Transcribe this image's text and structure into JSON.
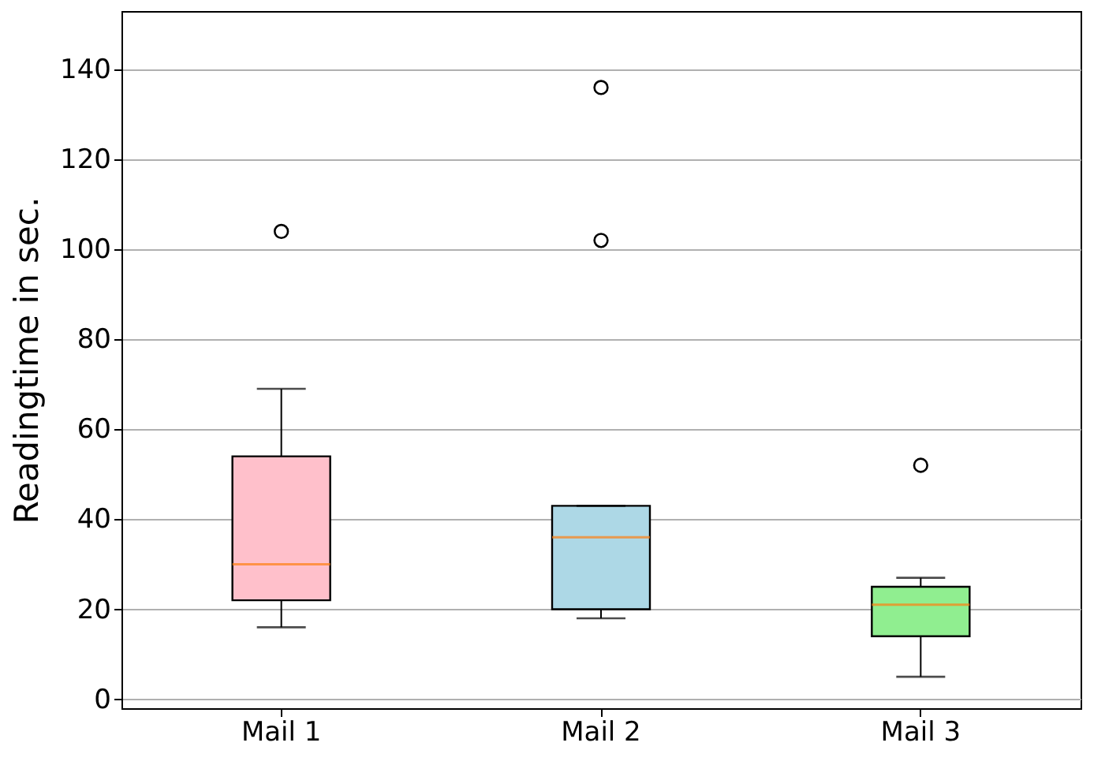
{
  "chart_data": {
    "type": "box",
    "ylabel": "Readingtime in sec.",
    "categories": [
      "Mail 1",
      "Mail 2",
      "Mail 3"
    ],
    "colors": [
      "#ffc0cb",
      "#add8e6",
      "#90ee90"
    ],
    "boxes": [
      {
        "low": 16,
        "q1": 22,
        "median": 30,
        "q3": 54,
        "high": 69,
        "outliers": [
          104
        ]
      },
      {
        "low": 18,
        "q1": 20,
        "median": 36,
        "q3": 43,
        "high": 43,
        "outliers": [
          102,
          136
        ]
      },
      {
        "low": 5,
        "q1": 14,
        "median": 21,
        "q3": 25,
        "high": 27,
        "outliers": [
          52
        ]
      }
    ],
    "ylim": [
      -2,
      153
    ],
    "yticks": [
      0,
      20,
      40,
      60,
      80,
      100,
      120,
      140
    ],
    "grid": "y"
  }
}
